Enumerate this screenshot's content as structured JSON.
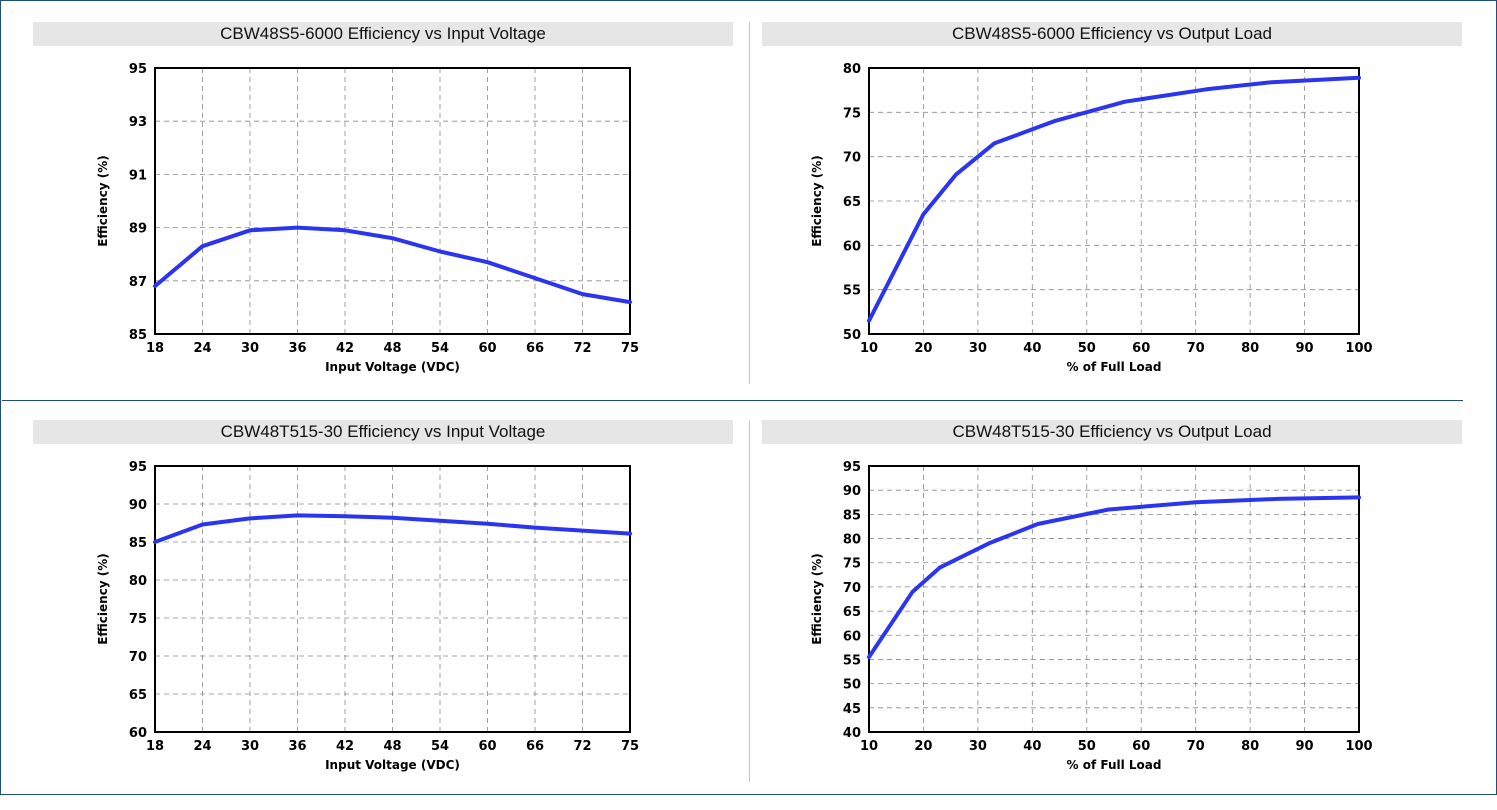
{
  "chart_data": [
    {
      "type": "line",
      "title": "CBW48S5-6000 Efficiency vs Input Voltage",
      "xlabel": "Input Voltage  (VDC)",
      "ylabel": "Efficiency (%)",
      "x_ticks": [
        18,
        24,
        30,
        36,
        42,
        48,
        54,
        60,
        66,
        72,
        75
      ],
      "y_ticks": [
        85,
        87,
        89,
        91,
        93,
        95
      ],
      "ylim": [
        85,
        95
      ],
      "grid": true,
      "series": [
        {
          "color": "#2b35f0",
          "x": [
            18,
            24,
            30,
            36,
            42,
            48,
            54,
            60,
            66,
            72,
            75
          ],
          "y": [
            86.8,
            88.3,
            88.9,
            89.0,
            88.9,
            88.6,
            88.1,
            87.7,
            87.1,
            86.5,
            86.2
          ]
        }
      ]
    },
    {
      "type": "line",
      "title": "CBW48S5-6000 Efficiency vs Output Load",
      "xlabel": "% of Full Load",
      "ylabel": "Efficiency (%)",
      "x_ticks": [
        10,
        20,
        30,
        40,
        50,
        60,
        70,
        80,
        90,
        100
      ],
      "y_ticks": [
        50,
        55,
        60,
        65,
        70,
        75,
        80
      ],
      "xlim": [
        10,
        100
      ],
      "ylim": [
        50,
        80
      ],
      "grid": true,
      "series": [
        {
          "color": "#2b35f0",
          "x": [
            10,
            20,
            26,
            33,
            44,
            57,
            72,
            84,
            100
          ],
          "y": [
            51.5,
            63.5,
            68.0,
            71.5,
            74.0,
            76.2,
            77.6,
            78.4,
            78.9
          ]
        }
      ]
    },
    {
      "type": "line",
      "title": "CBW48T515-30 Efficiency vs Input Voltage",
      "xlabel": "Input Voltage  (VDC)",
      "ylabel": "Efficiency (%)",
      "x_ticks": [
        18,
        24,
        30,
        36,
        42,
        48,
        54,
        60,
        66,
        72,
        75
      ],
      "y_ticks": [
        60,
        65,
        70,
        75,
        80,
        85,
        90,
        95
      ],
      "ylim": [
        60,
        95
      ],
      "grid": true,
      "series": [
        {
          "color": "#2b35f0",
          "x": [
            18,
            24,
            30,
            36,
            42,
            48,
            54,
            60,
            66,
            72,
            75
          ],
          "y": [
            85.0,
            87.3,
            88.1,
            88.5,
            88.4,
            88.2,
            87.8,
            87.4,
            86.9,
            86.5,
            86.1
          ]
        }
      ]
    },
    {
      "type": "line",
      "title": "CBW48T515-30 Efficiency vs Output Load",
      "xlabel": "% of Full Load",
      "ylabel": "Efficiency (%)",
      "x_ticks": [
        10,
        20,
        30,
        40,
        50,
        60,
        70,
        80,
        90,
        100
      ],
      "y_ticks": [
        40,
        45,
        50,
        55,
        60,
        65,
        70,
        75,
        80,
        85,
        90,
        95
      ],
      "xlim": [
        10,
        100
      ],
      "ylim": [
        40,
        95
      ],
      "grid": true,
      "series": [
        {
          "color": "#2b35f0",
          "x": [
            10,
            18,
            23,
            32,
            41,
            54,
            70,
            85,
            100
          ],
          "y": [
            55.5,
            69.0,
            74.0,
            79.0,
            83.0,
            86.0,
            87.5,
            88.2,
            88.5
          ]
        }
      ]
    }
  ]
}
